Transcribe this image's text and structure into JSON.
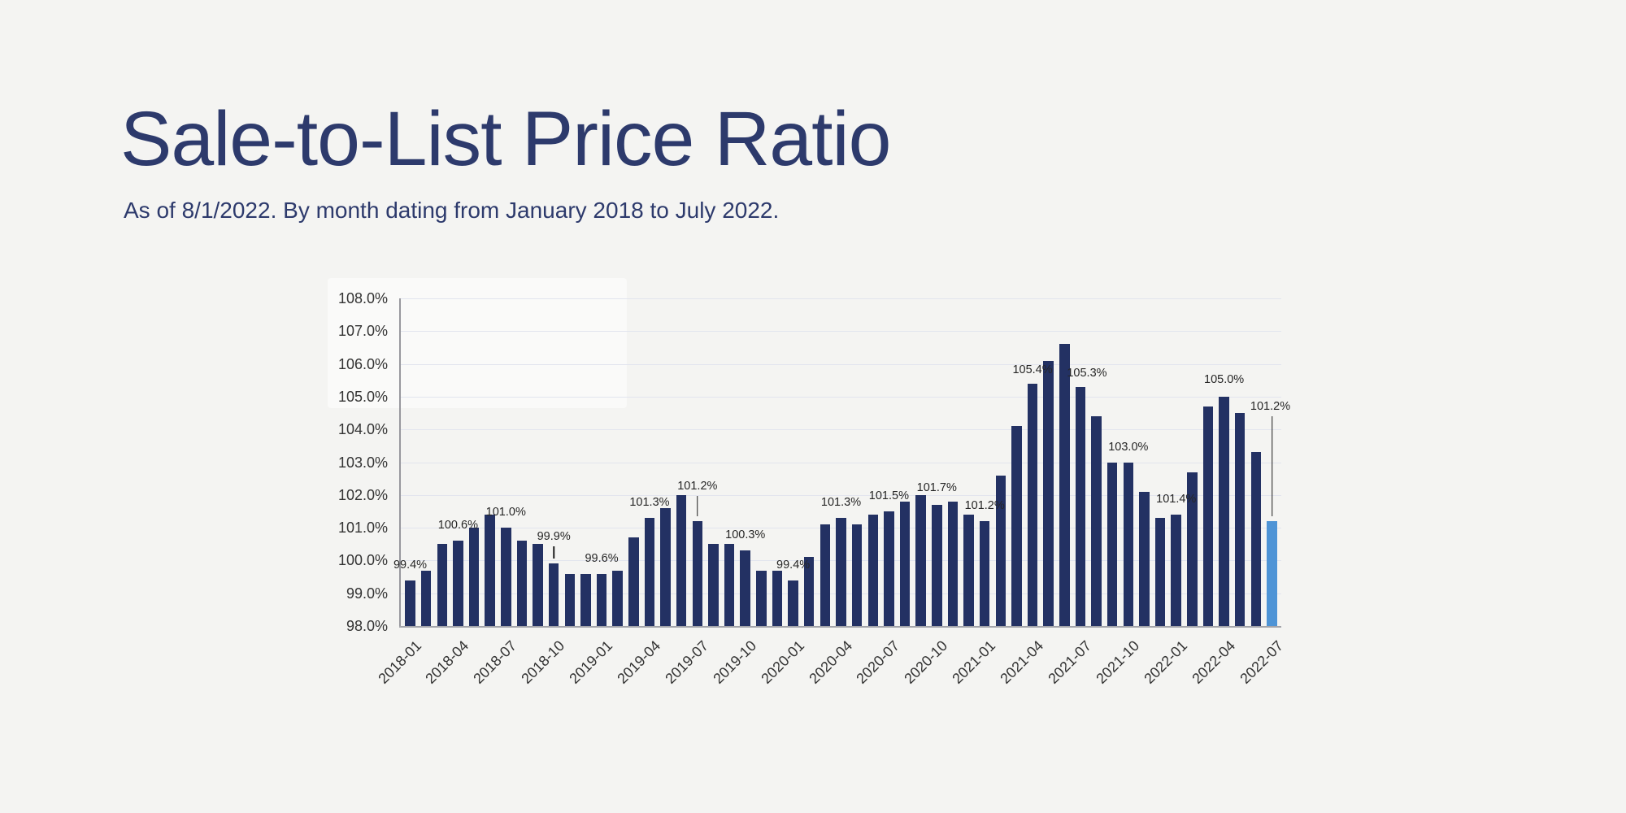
{
  "header": {
    "title": "Sale-to-List Price Ratio",
    "subtitle": "As of 8/1/2022. By month dating from January 2018 to July 2022."
  },
  "colors": {
    "page_background": "#f4f4f2",
    "title_navy": "#2d3a6c",
    "bar_navy": "#233163",
    "bar_highlight_blue": "#4e94d6",
    "gridline": "#e2e5ee",
    "axis_gray": "#98989e",
    "tick_text": "#333333",
    "data_label_text": "#262626"
  },
  "chart_data": {
    "type": "bar",
    "title": "Sale-to-List Price Ratio",
    "xlabel": "",
    "ylabel": "",
    "ylim": [
      98,
      108
    ],
    "ytick_step": 1,
    "grid": true,
    "legend": "none",
    "xtick_every": 3,
    "highlight_index": 54,
    "x": [
      "2018-01",
      "2018-02",
      "2018-03",
      "2018-04",
      "2018-05",
      "2018-06",
      "2018-07",
      "2018-08",
      "2018-09",
      "2018-10",
      "2018-11",
      "2018-12",
      "2019-01",
      "2019-02",
      "2019-03",
      "2019-04",
      "2019-05",
      "2019-06",
      "2019-07",
      "2019-08",
      "2019-09",
      "2019-10",
      "2019-11",
      "2019-12",
      "2020-01",
      "2020-02",
      "2020-03",
      "2020-04",
      "2020-05",
      "2020-06",
      "2020-07",
      "2020-08",
      "2020-09",
      "2020-10",
      "2020-11",
      "2020-12",
      "2021-01",
      "2021-02",
      "2021-03",
      "2021-04",
      "2021-05",
      "2021-06",
      "2021-07",
      "2021-08",
      "2021-09",
      "2021-10",
      "2021-11",
      "2021-12",
      "2022-01",
      "2022-02",
      "2022-03",
      "2022-04",
      "2022-05",
      "2022-06",
      "2022-07"
    ],
    "values": [
      99.4,
      99.7,
      100.5,
      100.6,
      101.0,
      101.4,
      101.0,
      100.6,
      100.5,
      99.9,
      99.6,
      99.6,
      99.6,
      99.7,
      100.7,
      101.3,
      101.6,
      102.0,
      101.2,
      100.5,
      100.5,
      100.3,
      99.7,
      99.7,
      99.4,
      100.1,
      101.1,
      101.3,
      101.1,
      101.4,
      101.5,
      101.8,
      102.0,
      101.7,
      101.8,
      101.4,
      101.2,
      102.6,
      104.1,
      105.4,
      106.1,
      106.6,
      105.3,
      104.4,
      103.0,
      103.0,
      102.1,
      101.3,
      101.4,
      102.7,
      104.7,
      105.0,
      104.5,
      103.3,
      101.2
    ],
    "y_ticks": [
      "98.0%",
      "99.0%",
      "100.0%",
      "101.0%",
      "102.0%",
      "103.0%",
      "104.0%",
      "105.0%",
      "106.0%",
      "107.0%",
      "108.0%"
    ],
    "x_ticks": [
      "2018-01",
      "2018-04",
      "2018-07",
      "2018-10",
      "2019-01",
      "2019-04",
      "2019-07",
      "2019-10",
      "2020-01",
      "2020-04",
      "2020-07",
      "2020-10",
      "2021-01",
      "2021-04",
      "2021-07",
      "2021-10",
      "2022-01",
      "2022-04",
      "2022-07"
    ],
    "data_labels": [
      {
        "index": 0,
        "text": "99.4%",
        "gap": 10,
        "leader": false,
        "dx": 0
      },
      {
        "index": 3,
        "text": "100.6%",
        "gap": 10,
        "leader": false,
        "dx": 0
      },
      {
        "index": 6,
        "text": "101.0%",
        "gap": 10,
        "leader": false,
        "dx": 0
      },
      {
        "index": 9,
        "text": "99.9%",
        "gap": 24,
        "leader": true,
        "dx": 0
      },
      {
        "index": 12,
        "text": "99.6%",
        "gap": 10,
        "leader": false,
        "dx": 0
      },
      {
        "index": 15,
        "text": "101.3%",
        "gap": 10,
        "leader": false,
        "dx": 0
      },
      {
        "index": 18,
        "text": "101.2%",
        "gap": 34,
        "leader": true,
        "dx": 0
      },
      {
        "index": 21,
        "text": "100.3%",
        "gap": 10,
        "leader": false,
        "dx": 0
      },
      {
        "index": 24,
        "text": "99.4%",
        "gap": 10,
        "leader": false,
        "dx": 0
      },
      {
        "index": 27,
        "text": "101.3%",
        "gap": 10,
        "leader": false,
        "dx": 0
      },
      {
        "index": 30,
        "text": "101.5%",
        "gap": 10,
        "leader": false,
        "dx": 0
      },
      {
        "index": 33,
        "text": "101.7%",
        "gap": 12,
        "leader": false,
        "dx": 0
      },
      {
        "index": 36,
        "text": "101.2%",
        "gap": 10,
        "leader": false,
        "dx": 0
      },
      {
        "index": 39,
        "text": "105.4%",
        "gap": 8,
        "leader": false,
        "dx": 0
      },
      {
        "index": 42,
        "text": "105.3%",
        "gap": 8,
        "leader": false,
        "dx": 8
      },
      {
        "index": 45,
        "text": "103.0%",
        "gap": 10,
        "leader": false,
        "dx": 0
      },
      {
        "index": 48,
        "text": "101.4%",
        "gap": 10,
        "leader": false,
        "dx": 0
      },
      {
        "index": 51,
        "text": "105.0%",
        "gap": 12,
        "leader": false,
        "dx": 0
      },
      {
        "index": 54,
        "text": "101.2%",
        "gap": 132,
        "leader": true,
        "dx": -2
      }
    ]
  }
}
